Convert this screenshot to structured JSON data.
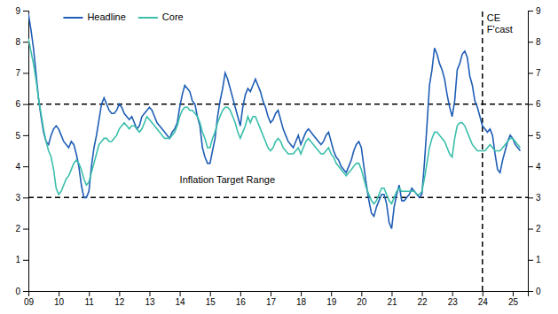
{
  "chart_data": {
    "type": "line",
    "x": [
      2009.0,
      2009.083,
      2009.167,
      2009.25,
      2009.333,
      2009.417,
      2009.5,
      2009.583,
      2009.667,
      2009.75,
      2009.833,
      2009.917,
      2010.0,
      2010.083,
      2010.167,
      2010.25,
      2010.333,
      2010.417,
      2010.5,
      2010.583,
      2010.667,
      2010.75,
      2010.833,
      2010.917,
      2011.0,
      2011.083,
      2011.167,
      2011.25,
      2011.333,
      2011.417,
      2011.5,
      2011.583,
      2011.667,
      2011.75,
      2011.833,
      2011.917,
      2012.0,
      2012.083,
      2012.167,
      2012.25,
      2012.333,
      2012.417,
      2012.5,
      2012.583,
      2012.667,
      2012.75,
      2012.833,
      2012.917,
      2013.0,
      2013.083,
      2013.167,
      2013.25,
      2013.333,
      2013.417,
      2013.5,
      2013.583,
      2013.667,
      2013.75,
      2013.833,
      2013.917,
      2014.0,
      2014.083,
      2014.167,
      2014.25,
      2014.333,
      2014.417,
      2014.5,
      2014.583,
      2014.667,
      2014.75,
      2014.833,
      2014.917,
      2015.0,
      2015.083,
      2015.167,
      2015.25,
      2015.333,
      2015.417,
      2015.5,
      2015.583,
      2015.667,
      2015.75,
      2015.833,
      2015.917,
      2016.0,
      2016.083,
      2016.167,
      2016.25,
      2016.333,
      2016.417,
      2016.5,
      2016.583,
      2016.667,
      2016.75,
      2016.833,
      2016.917,
      2017.0,
      2017.083,
      2017.167,
      2017.25,
      2017.333,
      2017.417,
      2017.5,
      2017.583,
      2017.667,
      2017.75,
      2017.833,
      2017.917,
      2018.0,
      2018.083,
      2018.167,
      2018.25,
      2018.333,
      2018.417,
      2018.5,
      2018.583,
      2018.667,
      2018.75,
      2018.833,
      2018.917,
      2019.0,
      2019.083,
      2019.167,
      2019.25,
      2019.333,
      2019.417,
      2019.5,
      2019.583,
      2019.667,
      2019.75,
      2019.833,
      2019.917,
      2020.0,
      2020.083,
      2020.167,
      2020.25,
      2020.333,
      2020.417,
      2020.5,
      2020.583,
      2020.667,
      2020.75,
      2020.833,
      2020.917,
      2021.0,
      2021.083,
      2021.167,
      2021.25,
      2021.333,
      2021.417,
      2021.5,
      2021.583,
      2021.667,
      2021.75,
      2021.833,
      2021.917,
      2022.0,
      2022.083,
      2022.167,
      2022.25,
      2022.333,
      2022.417,
      2022.5,
      2022.583,
      2022.667,
      2022.75,
      2022.833,
      2022.917,
      2023.0,
      2023.083,
      2023.167,
      2023.25,
      2023.333,
      2023.417,
      2023.5,
      2023.583,
      2023.667,
      2023.75,
      2023.833,
      2023.917,
      2024.0,
      2024.083,
      2024.167,
      2024.25,
      2024.333,
      2024.417,
      2024.5,
      2024.583,
      2024.667,
      2024.75,
      2024.833,
      2024.917,
      2025.0,
      2025.083,
      2025.167,
      2025.25
    ],
    "series": [
      {
        "name": "Headline",
        "color": "#1f5eb5",
        "values": [
          8.9,
          8.4,
          7.8,
          7.0,
          6.2,
          5.6,
          5.1,
          4.8,
          4.7,
          5.0,
          5.2,
          5.3,
          5.2,
          5.0,
          4.8,
          4.7,
          4.6,
          4.8,
          4.7,
          4.4,
          4.0,
          3.4,
          3.0,
          3.0,
          3.2,
          4.0,
          4.6,
          5.0,
          5.5,
          6.0,
          6.2,
          6.0,
          5.8,
          5.7,
          5.7,
          5.8,
          6.0,
          5.9,
          5.7,
          5.6,
          5.5,
          5.6,
          5.4,
          5.2,
          5.3,
          5.6,
          5.7,
          5.8,
          5.9,
          5.8,
          5.6,
          5.4,
          5.3,
          5.2,
          5.1,
          5.0,
          4.9,
          5.1,
          5.2,
          5.4,
          5.9,
          6.3,
          6.6,
          6.5,
          6.4,
          6.1,
          6.0,
          5.6,
          5.3,
          4.6,
          4.3,
          4.1,
          4.1,
          4.5,
          4.9,
          5.6,
          6.1,
          6.5,
          7.0,
          6.8,
          6.5,
          6.2,
          5.9,
          5.6,
          5.3,
          5.9,
          6.3,
          6.5,
          6.4,
          6.6,
          6.8,
          6.6,
          6.4,
          6.1,
          5.9,
          5.6,
          5.4,
          5.5,
          5.7,
          5.8,
          5.5,
          5.2,
          5.0,
          4.8,
          4.7,
          4.6,
          4.8,
          5.0,
          4.7,
          4.9,
          5.1,
          5.2,
          5.1,
          5.0,
          4.9,
          4.8,
          4.7,
          4.8,
          5.0,
          5.1,
          4.8,
          4.5,
          4.3,
          4.2,
          4.0,
          3.9,
          3.8,
          4.0,
          4.2,
          4.5,
          4.7,
          4.8,
          4.6,
          4.0,
          3.4,
          2.9,
          2.5,
          2.4,
          2.7,
          2.9,
          3.1,
          3.1,
          2.8,
          2.2,
          2.0,
          2.7,
          3.1,
          3.4,
          2.9,
          2.9,
          3.0,
          3.1,
          3.3,
          3.2,
          3.1,
          3.0,
          3.1,
          4.1,
          5.3,
          6.6,
          7.1,
          7.8,
          7.6,
          7.3,
          7.1,
          6.8,
          6.3,
          5.9,
          5.6,
          6.1,
          7.1,
          7.3,
          7.6,
          7.7,
          7.5,
          6.9,
          6.6,
          6.1,
          5.9,
          5.6,
          5.3,
          5.2,
          5.1,
          5.2,
          5.0,
          4.4,
          3.9,
          3.8,
          4.2,
          4.5,
          4.8,
          5.0,
          4.9,
          4.7,
          4.6,
          4.5
        ]
      },
      {
        "name": "Core",
        "color": "#3bbfaa",
        "values": [
          8.1,
          7.7,
          7.3,
          6.8,
          6.2,
          5.7,
          5.2,
          4.8,
          4.5,
          4.3,
          3.9,
          3.3,
          3.1,
          3.2,
          3.4,
          3.6,
          3.7,
          3.9,
          4.1,
          4.2,
          4.1,
          3.9,
          3.6,
          3.4,
          3.5,
          3.8,
          4.1,
          4.4,
          4.7,
          4.8,
          4.9,
          4.9,
          4.8,
          4.8,
          4.9,
          5.0,
          5.2,
          5.3,
          5.4,
          5.3,
          5.2,
          5.3,
          5.3,
          5.2,
          5.1,
          5.2,
          5.4,
          5.6,
          5.5,
          5.4,
          5.3,
          5.2,
          5.1,
          5.0,
          4.9,
          4.9,
          4.9,
          5.0,
          5.1,
          5.3,
          5.6,
          5.8,
          5.9,
          5.9,
          5.8,
          5.8,
          5.7,
          5.6,
          5.4,
          5.1,
          4.9,
          4.6,
          4.6,
          4.9,
          5.1,
          5.4,
          5.6,
          5.8,
          5.9,
          5.9,
          5.8,
          5.6,
          5.4,
          5.1,
          4.9,
          5.1,
          5.3,
          5.6,
          5.4,
          5.6,
          5.6,
          5.4,
          5.2,
          5.0,
          4.8,
          4.6,
          4.5,
          4.6,
          4.8,
          4.9,
          4.8,
          4.6,
          4.5,
          4.4,
          4.4,
          4.4,
          4.5,
          4.6,
          4.4,
          4.6,
          4.8,
          4.9,
          4.8,
          4.7,
          4.6,
          4.5,
          4.4,
          4.4,
          4.5,
          4.6,
          4.4,
          4.3,
          4.1,
          4.0,
          3.9,
          3.8,
          3.7,
          3.8,
          3.9,
          4.0,
          4.1,
          4.1,
          3.9,
          3.6,
          3.3,
          3.1,
          2.9,
          2.8,
          2.9,
          3.1,
          3.3,
          3.3,
          3.1,
          2.9,
          2.8,
          3.0,
          3.2,
          3.3,
          3.2,
          3.2,
          3.2,
          3.2,
          3.2,
          3.2,
          3.1,
          3.1,
          3.2,
          3.6,
          4.1,
          4.6,
          4.9,
          5.1,
          5.1,
          5.0,
          4.9,
          4.8,
          4.6,
          4.4,
          4.3,
          4.9,
          5.3,
          5.4,
          5.4,
          5.3,
          5.1,
          4.9,
          4.7,
          4.6,
          4.5,
          4.5,
          4.5,
          4.5,
          4.6,
          4.7,
          4.6,
          4.5,
          4.5,
          4.5,
          4.6,
          4.7,
          4.8,
          4.9,
          4.9,
          4.8,
          4.7,
          4.6
        ]
      }
    ],
    "xlim": [
      2009.0,
      2025.5
    ],
    "xticks": [
      {
        "value": 2009,
        "label": "09"
      },
      {
        "value": 2010,
        "label": "10"
      },
      {
        "value": 2011,
        "label": "11"
      },
      {
        "value": 2012,
        "label": "12"
      },
      {
        "value": 2013,
        "label": "13"
      },
      {
        "value": 2014,
        "label": "14"
      },
      {
        "value": 2015,
        "label": "15"
      },
      {
        "value": 2016,
        "label": "16"
      },
      {
        "value": 2017,
        "label": "17"
      },
      {
        "value": 2018,
        "label": "18"
      },
      {
        "value": 2019,
        "label": "19"
      },
      {
        "value": 2020,
        "label": "20"
      },
      {
        "value": 2021,
        "label": "21"
      },
      {
        "value": 2022,
        "label": "22"
      },
      {
        "value": 2023,
        "label": "23"
      },
      {
        "value": 2024,
        "label": "24"
      },
      {
        "value": 2025,
        "label": "25"
      }
    ],
    "ylim": [
      0,
      9
    ],
    "yticks": [
      0,
      1,
      2,
      3,
      4,
      5,
      6,
      7,
      8,
      9
    ],
    "y2lim": [
      0,
      9
    ],
    "y2ticks": [
      0,
      1,
      2,
      3,
      4,
      5,
      6,
      7,
      8,
      9
    ],
    "hlines": [
      3,
      6
    ],
    "vline": {
      "x": 2024.0,
      "labels": [
        "CE",
        "F'cast"
      ]
    },
    "annotations": [
      {
        "text": "Inflation Target Range",
        "x": 2014.0,
        "y": 3.55
      }
    ],
    "legend": "upper left",
    "grid": false
  }
}
